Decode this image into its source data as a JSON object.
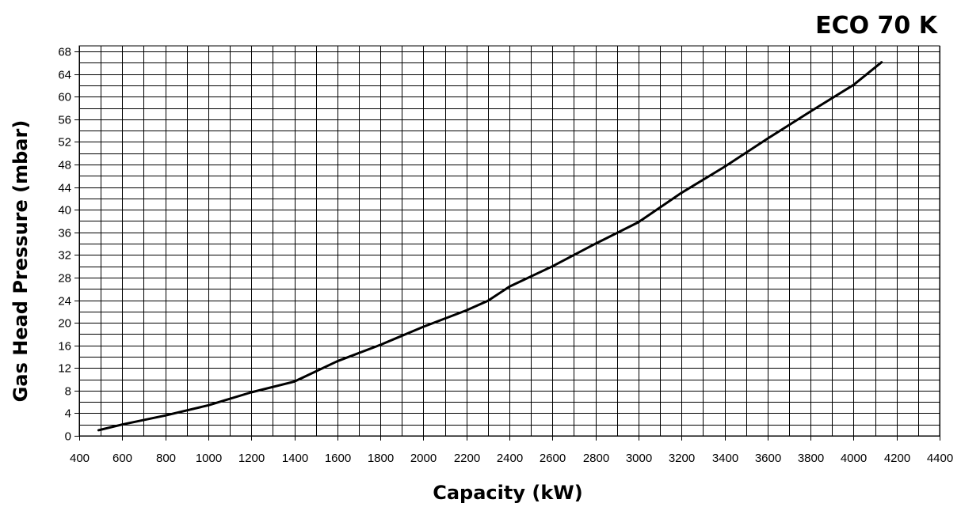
{
  "chart_data": {
    "type": "line",
    "title": "ECO 70 K",
    "xlabel": "Capacity (kW)",
    "ylabel": "Gas Head Pressure (mbar)",
    "xlim": [
      400,
      4400
    ],
    "ylim": [
      0,
      68
    ],
    "x_ticks": [
      "400",
      "600",
      "800",
      "1000",
      "1200",
      "1400",
      "1600",
      "1800",
      "2000",
      "2200",
      "2400",
      "2600",
      "2800",
      "3000",
      "3200",
      "3400",
      "3600",
      "3800",
      "4000",
      "4200",
      "4400"
    ],
    "y_ticks": [
      "0",
      "4",
      "8",
      "12",
      "16",
      "20",
      "24",
      "28",
      "32",
      "36",
      "40",
      "44",
      "48",
      "52",
      "56",
      "60",
      "64",
      "68"
    ],
    "grid": true,
    "series": [
      {
        "color": "#000000",
        "x": [
          490,
          600,
          800,
          1000,
          1200,
          1400,
          1600,
          1800,
          2000,
          2200,
          2300,
          2400,
          2600,
          2800,
          3000,
          3200,
          3400,
          3600,
          3800,
          4000,
          4130
        ],
        "y": [
          1.0,
          2.0,
          3.6,
          5.4,
          7.7,
          9.6,
          13.2,
          16.1,
          19.3,
          22.2,
          23.9,
          26.4,
          30.0,
          34.0,
          37.8,
          43.0,
          47.6,
          52.6,
          57.4,
          62.1,
          66.1
        ]
      }
    ]
  }
}
